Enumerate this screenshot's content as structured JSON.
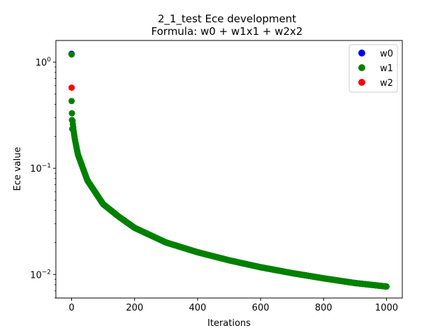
{
  "chart_data": {
    "type": "scatter",
    "title_line1": "2_1_test Ece development",
    "title_line2": "Formula: w0 + w1x1 + w2x2",
    "xlabel": "Iterations",
    "ylabel": "Ece value",
    "xlim": [
      -50,
      1050
    ],
    "ylim": [
      0.006,
      1.6
    ],
    "yscale": "log",
    "xticks": [
      0,
      200,
      400,
      600,
      800,
      1000
    ],
    "xtick_labels": [
      "0",
      "200",
      "400",
      "600",
      "800",
      "1000"
    ],
    "yticks": [
      0.01,
      0.1,
      1
    ],
    "grid": false,
    "legend_position": "top-right",
    "series": [
      {
        "name": "w0",
        "color": "#0000ff",
        "points": [
          [
            0,
            1.2
          ]
        ]
      },
      {
        "name": "w1",
        "color": "#008000",
        "early_points": [
          [
            0,
            1.18
          ],
          [
            0,
            0.43
          ],
          [
            1,
            0.33
          ],
          [
            1,
            0.285
          ],
          [
            2,
            0.235
          ],
          [
            3,
            0.28
          ],
          [
            4,
            0.26
          ],
          [
            5,
            0.245
          ]
        ],
        "curve": {
          "from_iteration": 5,
          "to_iteration": 1000,
          "sample_points": [
            [
              5,
              0.24
            ],
            [
              10,
              0.19
            ],
            [
              20,
              0.135
            ],
            [
              50,
              0.077
            ],
            [
              100,
              0.046
            ],
            [
              150,
              0.035
            ],
            [
              200,
              0.0275
            ],
            [
              300,
              0.02
            ],
            [
              400,
              0.0162
            ],
            [
              500,
              0.0136
            ],
            [
              600,
              0.0117
            ],
            [
              700,
              0.0103
            ],
            [
              800,
              0.0092
            ],
            [
              900,
              0.0083
            ],
            [
              1000,
              0.0077
            ]
          ]
        }
      },
      {
        "name": "w2",
        "color": "#ff0000",
        "points": [
          [
            0,
            0.575
          ]
        ]
      }
    ]
  }
}
